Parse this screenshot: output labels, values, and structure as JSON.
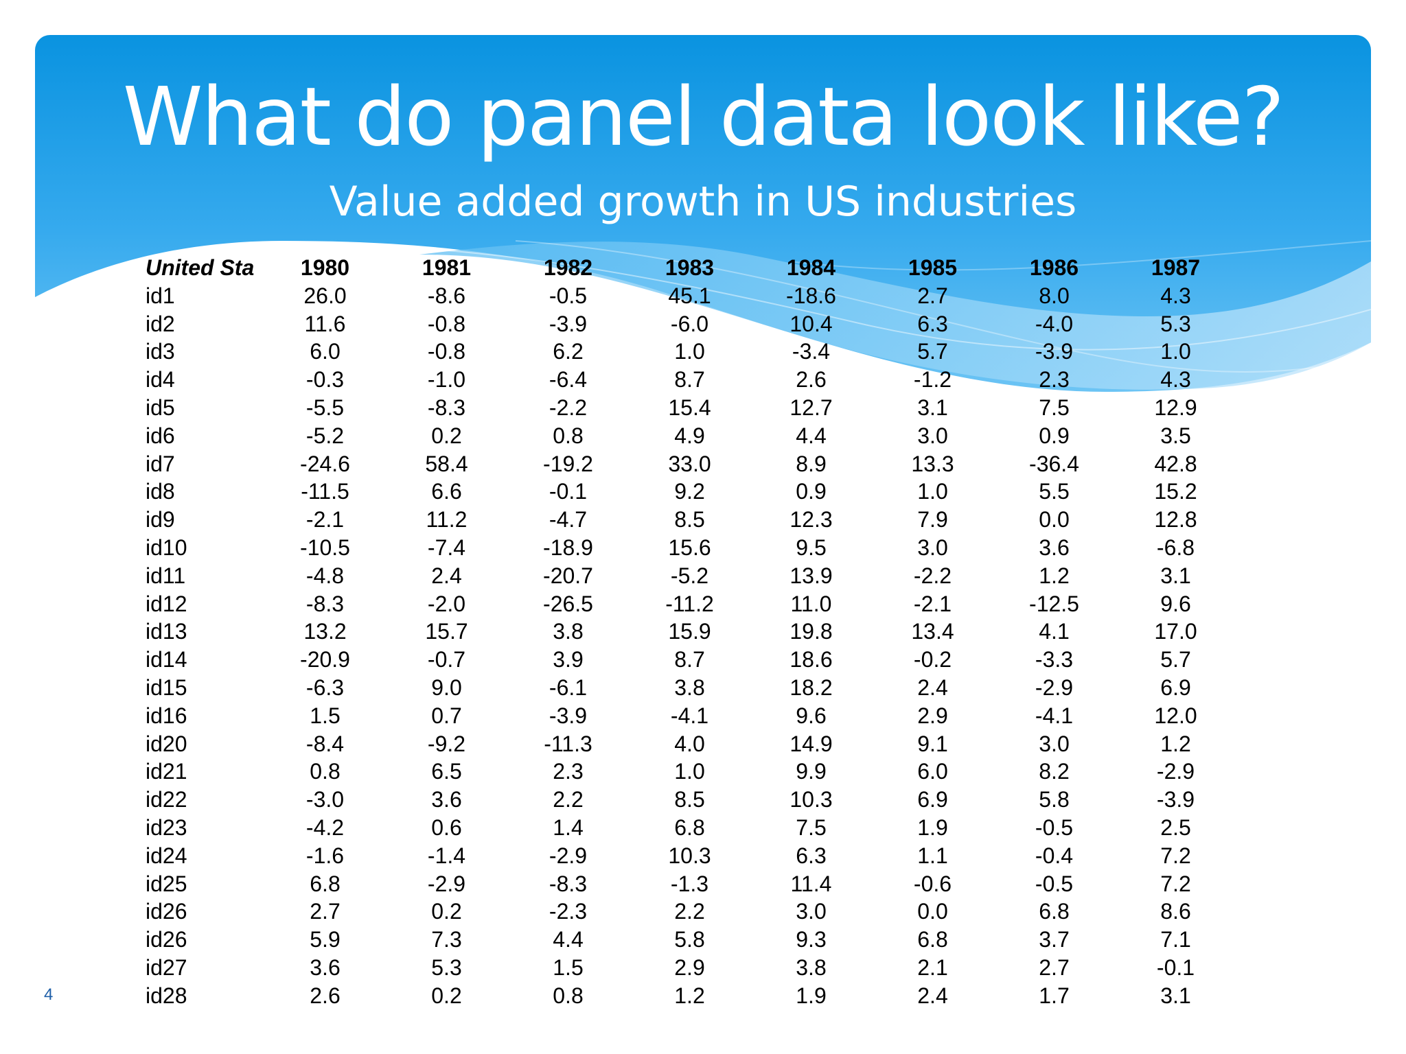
{
  "slide": {
    "title": "What do panel data look like?",
    "subtitle": "Value added growth in US industries",
    "page_number": "4",
    "banner_colors": {
      "top": "#0a93e0",
      "bottom": "#5cbcf2",
      "wave_light": "#bfe4fb"
    }
  },
  "table": {
    "corner_label": "United Sta",
    "years": [
      "1980",
      "1981",
      "1982",
      "1983",
      "1984",
      "1985",
      "1986",
      "1987"
    ],
    "rows": [
      {
        "id": "id1",
        "values": [
          "26.0",
          "-8.6",
          "-0.5",
          "45.1",
          "-18.6",
          "2.7",
          "8.0",
          "4.3"
        ]
      },
      {
        "id": "id2",
        "values": [
          "11.6",
          "-0.8",
          "-3.9",
          "-6.0",
          "10.4",
          "6.3",
          "-4.0",
          "5.3"
        ]
      },
      {
        "id": "id3",
        "values": [
          "6.0",
          "-0.8",
          "6.2",
          "1.0",
          "-3.4",
          "5.7",
          "-3.9",
          "1.0"
        ]
      },
      {
        "id": "id4",
        "values": [
          "-0.3",
          "-1.0",
          "-6.4",
          "8.7",
          "2.6",
          "-1.2",
          "2.3",
          "4.3"
        ]
      },
      {
        "id": "id5",
        "values": [
          "-5.5",
          "-8.3",
          "-2.2",
          "15.4",
          "12.7",
          "3.1",
          "7.5",
          "12.9"
        ]
      },
      {
        "id": "id6",
        "values": [
          "-5.2",
          "0.2",
          "0.8",
          "4.9",
          "4.4",
          "3.0",
          "0.9",
          "3.5"
        ]
      },
      {
        "id": "id7",
        "values": [
          "-24.6",
          "58.4",
          "-19.2",
          "33.0",
          "8.9",
          "13.3",
          "-36.4",
          "42.8"
        ]
      },
      {
        "id": "id8",
        "values": [
          "-11.5",
          "6.6",
          "-0.1",
          "9.2",
          "0.9",
          "1.0",
          "5.5",
          "15.2"
        ]
      },
      {
        "id": "id9",
        "values": [
          "-2.1",
          "11.2",
          "-4.7",
          "8.5",
          "12.3",
          "7.9",
          "0.0",
          "12.8"
        ]
      },
      {
        "id": "id10",
        "values": [
          "-10.5",
          "-7.4",
          "-18.9",
          "15.6",
          "9.5",
          "3.0",
          "3.6",
          "-6.8"
        ]
      },
      {
        "id": "id11",
        "values": [
          "-4.8",
          "2.4",
          "-20.7",
          "-5.2",
          "13.9",
          "-2.2",
          "1.2",
          "3.1"
        ]
      },
      {
        "id": "id12",
        "values": [
          "-8.3",
          "-2.0",
          "-26.5",
          "-11.2",
          "11.0",
          "-2.1",
          "-12.5",
          "9.6"
        ]
      },
      {
        "id": "id13",
        "values": [
          "13.2",
          "15.7",
          "3.8",
          "15.9",
          "19.8",
          "13.4",
          "4.1",
          "17.0"
        ]
      },
      {
        "id": "id14",
        "values": [
          "-20.9",
          "-0.7",
          "3.9",
          "8.7",
          "18.6",
          "-0.2",
          "-3.3",
          "5.7"
        ]
      },
      {
        "id": "id15",
        "values": [
          "-6.3",
          "9.0",
          "-6.1",
          "3.8",
          "18.2",
          "2.4",
          "-2.9",
          "6.9"
        ]
      },
      {
        "id": "id16",
        "values": [
          "1.5",
          "0.7",
          "-3.9",
          "-4.1",
          "9.6",
          "2.9",
          "-4.1",
          "12.0"
        ]
      },
      {
        "id": "id20",
        "values": [
          "-8.4",
          "-9.2",
          "-11.3",
          "4.0",
          "14.9",
          "9.1",
          "3.0",
          "1.2"
        ]
      },
      {
        "id": "id21",
        "values": [
          "0.8",
          "6.5",
          "2.3",
          "1.0",
          "9.9",
          "6.0",
          "8.2",
          "-2.9"
        ]
      },
      {
        "id": "id22",
        "values": [
          "-3.0",
          "3.6",
          "2.2",
          "8.5",
          "10.3",
          "6.9",
          "5.8",
          "-3.9"
        ]
      },
      {
        "id": "id23",
        "values": [
          "-4.2",
          "0.6",
          "1.4",
          "6.8",
          "7.5",
          "1.9",
          "-0.5",
          "2.5"
        ]
      },
      {
        "id": "id24",
        "values": [
          "-1.6",
          "-1.4",
          "-2.9",
          "10.3",
          "6.3",
          "1.1",
          "-0.4",
          "7.2"
        ]
      },
      {
        "id": "id25",
        "values": [
          "6.8",
          "-2.9",
          "-8.3",
          "-1.3",
          "11.4",
          "-0.6",
          "-0.5",
          "7.2"
        ]
      },
      {
        "id": "id26",
        "values": [
          "2.7",
          "0.2",
          "-2.3",
          "2.2",
          "3.0",
          "0.0",
          "6.8",
          "8.6"
        ]
      },
      {
        "id": "id26",
        "values": [
          "5.9",
          "7.3",
          "4.4",
          "5.8",
          "9.3",
          "6.8",
          "3.7",
          "7.1"
        ]
      },
      {
        "id": "id27",
        "values": [
          "3.6",
          "5.3",
          "1.5",
          "2.9",
          "3.8",
          "2.1",
          "2.7",
          "-0.1"
        ]
      },
      {
        "id": "id28",
        "values": [
          "2.6",
          "0.2",
          "0.8",
          "1.2",
          "1.9",
          "2.4",
          "1.7",
          "3.1"
        ]
      }
    ]
  }
}
